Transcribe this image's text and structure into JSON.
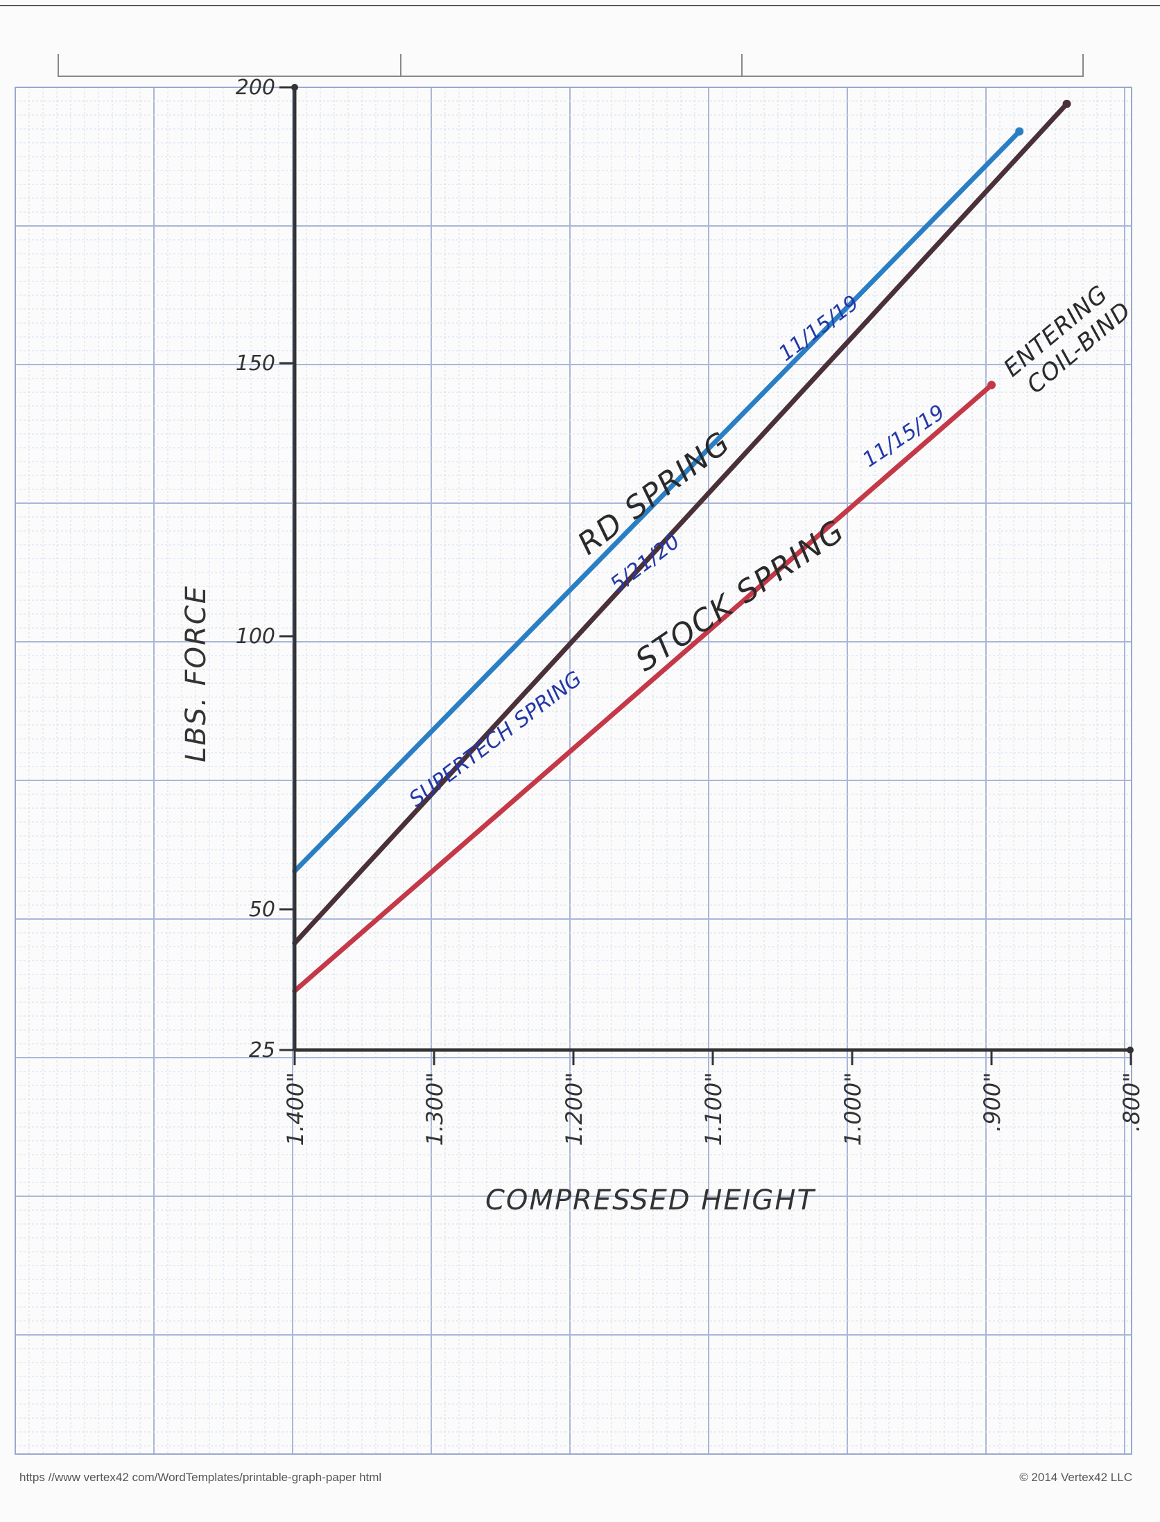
{
  "chart_data": {
    "type": "line",
    "xlabel": "COMPRESSED HEIGHT",
    "ylabel": "LBS. FORCE",
    "x_ticks": [
      "1.400\"",
      "1.300\"",
      "1.200\"",
      "1.100\"",
      "1.000\"",
      ".900\"",
      ".800\""
    ],
    "x_tick_values": [
      1.4,
      1.3,
      1.2,
      1.1,
      1.0,
      0.9,
      0.8
    ],
    "y_ticks": [
      "200",
      "150",
      "100",
      "50",
      "25"
    ],
    "y_tick_values": [
      200,
      150,
      100,
      50,
      25
    ],
    "xlim": [
      1.4,
      0.8
    ],
    "ylim": [
      25,
      200
    ],
    "grid": true,
    "series": [
      {
        "name": "RD SPRING",
        "color": "#2a7fc4",
        "x": [
          1.4,
          0.88
        ],
        "y": [
          57,
          192
        ]
      },
      {
        "name": "SUPERTECH SPRING",
        "color": "#4a3038",
        "x": [
          1.4,
          0.846
        ],
        "y": [
          44,
          197
        ]
      },
      {
        "name": "STOCK SPRING",
        "color": "#c43848",
        "x": [
          1.4,
          0.9
        ],
        "y": [
          35.5,
          146
        ]
      }
    ],
    "annotations": [
      {
        "text": "RD SPRING",
        "date": "11/15/19"
      },
      {
        "text": "SUPERTECH SPRING",
        "date": "5/21/20"
      },
      {
        "text": "STOCK SPRING",
        "date": "11/15/19"
      },
      {
        "text": "ENTERING COIL-BIND"
      }
    ]
  },
  "footer": {
    "url": "https //www vertex42 com/WordTemplates/printable-graph-paper html",
    "copyright": "© 2014 Vertex42 LLC"
  }
}
